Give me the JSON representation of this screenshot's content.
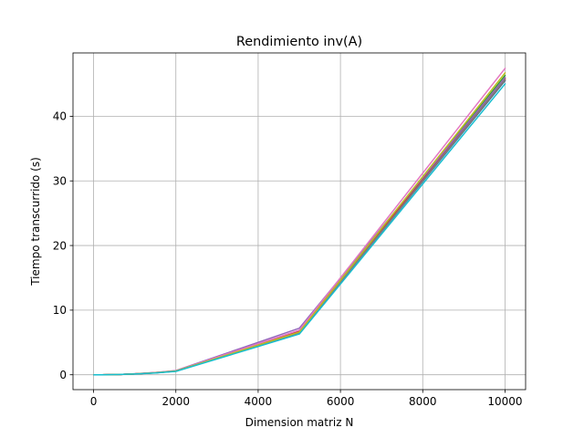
{
  "chart_data": {
    "type": "line",
    "title": "Rendimiento inv(A)",
    "xlabel": "Dimension matriz N",
    "ylabel": "Tiempo transcurrido (s)",
    "xlim": [
      -500,
      10500
    ],
    "ylim": [
      -2.3,
      49.8
    ],
    "xticks": [
      0,
      2000,
      4000,
      6000,
      8000,
      10000
    ],
    "yticks": [
      0,
      10,
      20,
      30,
      40
    ],
    "grid": true,
    "x": [
      10,
      100,
      200,
      500,
      800,
      1000,
      1500,
      2000,
      5000,
      10000
    ],
    "series": [
      {
        "color": "#1f77b4",
        "values": [
          0.0,
          0.0,
          0.0,
          0.03,
          0.08,
          0.13,
          0.3,
          0.55,
          6.5,
          45.5
        ]
      },
      {
        "color": "#ff7f0e",
        "values": [
          0.0,
          0.0,
          0.0,
          0.03,
          0.08,
          0.13,
          0.31,
          0.56,
          6.6,
          45.8
        ]
      },
      {
        "color": "#2ca02c",
        "values": [
          0.0,
          0.0,
          0.0,
          0.03,
          0.08,
          0.14,
          0.32,
          0.58,
          6.7,
          46.3
        ]
      },
      {
        "color": "#d62728",
        "values": [
          0.0,
          0.0,
          0.0,
          0.03,
          0.09,
          0.14,
          0.33,
          0.6,
          6.8,
          45.9
        ]
      },
      {
        "color": "#9467bd",
        "values": [
          0.0,
          0.0,
          0.0,
          0.03,
          0.09,
          0.15,
          0.35,
          0.65,
          7.2,
          46.0
        ]
      },
      {
        "color": "#8c564b",
        "values": [
          0.0,
          0.0,
          0.0,
          0.03,
          0.08,
          0.13,
          0.31,
          0.56,
          6.6,
          45.6
        ]
      },
      {
        "color": "#e377c2",
        "values": [
          0.0,
          0.0,
          0.0,
          0.03,
          0.09,
          0.15,
          0.34,
          0.62,
          6.9,
          47.4
        ]
      },
      {
        "color": "#7f7f7f",
        "values": [
          0.0,
          0.0,
          0.0,
          0.03,
          0.08,
          0.13,
          0.3,
          0.55,
          6.5,
          45.7
        ]
      },
      {
        "color": "#bcbd22",
        "values": [
          0.0,
          0.0,
          0.0,
          0.03,
          0.08,
          0.14,
          0.32,
          0.58,
          6.6,
          46.7
        ]
      },
      {
        "color": "#17becf",
        "values": [
          0.0,
          0.0,
          0.0,
          0.03,
          0.08,
          0.12,
          0.28,
          0.52,
          6.3,
          45.0
        ]
      }
    ]
  }
}
